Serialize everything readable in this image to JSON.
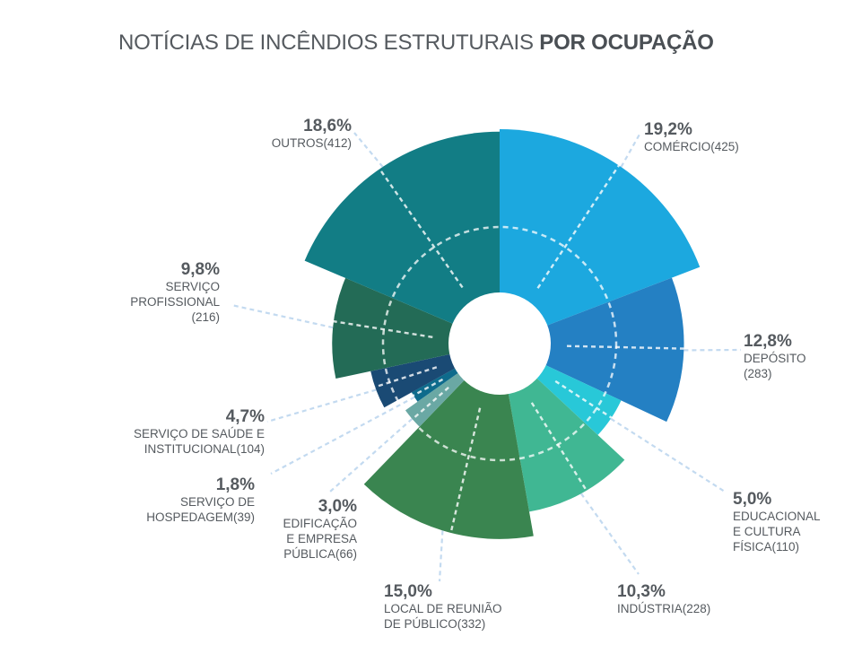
{
  "title": {
    "normal": "NOTÍCIAS DE INCÊNDIOS ESTRUTURAIS ",
    "bold": "POR OCUPAÇÃO"
  },
  "chart_data": {
    "type": "polar-area",
    "title": "NOTÍCIAS DE INCÊNDIOS ESTRUTURAIS POR OCUPAÇÃO",
    "unit": "notícias",
    "max_value": 425,
    "segments": [
      {
        "name": "COMÉRCIO",
        "count": 425,
        "percent": "19,2%",
        "label_lines": [
          "COMÉRCIO(425)"
        ],
        "color": "#1ca8df"
      },
      {
        "name": "DEPÓSITO",
        "count": 283,
        "percent": "12,8%",
        "label_lines": [
          "DEPÓSITO",
          "(283)"
        ],
        "color": "#2480c3"
      },
      {
        "name": "EDUCACIONAL E CULTURA FÍSICA",
        "count": 110,
        "percent": "5,0%",
        "label_lines": [
          "EDUCACIONAL",
          "E CULTURA",
          "FÍSICA(110)"
        ],
        "color": "#28c8d8"
      },
      {
        "name": "INDÚSTRIA",
        "count": 228,
        "percent": "10,3%",
        "label_lines": [
          "INDÚSTRIA(228)"
        ],
        "color": "#40b793"
      },
      {
        "name": "LOCAL DE REUNIÃO DE PÚBLICO",
        "count": 332,
        "percent": "15,0%",
        "label_lines": [
          "LOCAL DE REUNIÃO",
          "DE PÚBLICO(332)"
        ],
        "color": "#3a8550"
      },
      {
        "name": "EDIFICAÇÃO E EMPRESA PÚBLICA",
        "count": 66,
        "percent": "3,0%",
        "label_lines": [
          "EDIFICAÇÃO",
          "E EMPRESA",
          "PÚBLICA(66)"
        ],
        "color": "#6aa8a4"
      },
      {
        "name": "SERVIÇO DE HOSPEDAGEM",
        "count": 39,
        "percent": "1,8%",
        "label_lines": [
          "SERVIÇO DE",
          "HOSPEDAGEM(39)"
        ],
        "color": "#0e6b8c"
      },
      {
        "name": "SERVIÇO DE SAÚDE E INSTITUCIONAL",
        "count": 104,
        "percent": "4,7%",
        "label_lines": [
          "SERVIÇO DE SAÚDE E",
          "INSTITUCIONAL(104)"
        ],
        "color": "#1a4a74"
      },
      {
        "name": "SERVIÇO PROFISSIONAL",
        "count": 216,
        "percent": "9,8%",
        "label_lines": [
          "SERVIÇO",
          "PROFISSIONAL",
          "(216)"
        ],
        "color": "#236b56"
      },
      {
        "name": "OUTROS",
        "count": 412,
        "percent": "18,6%",
        "label_lines": [
          "OUTROS(412)"
        ],
        "color": "#127d85"
      }
    ]
  }
}
